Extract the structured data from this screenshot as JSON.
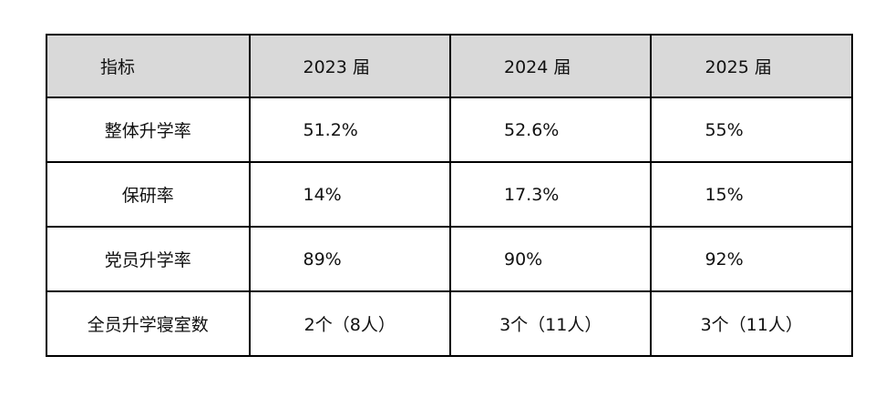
{
  "table": {
    "header": [
      "指标",
      "2023 届",
      "2024 届",
      "2025 届"
    ],
    "rows": [
      [
        "整体升学率",
        "51.2%",
        "52.6%",
        "55%"
      ],
      [
        "保研率",
        "14%",
        "17.3%",
        "15%"
      ],
      [
        "党员升学率",
        "89%",
        "90%",
        "92%"
      ],
      [
        "全员升学寝室数",
        "2个（8人）",
        "3个（11人）",
        "3个（11人）"
      ]
    ]
  }
}
